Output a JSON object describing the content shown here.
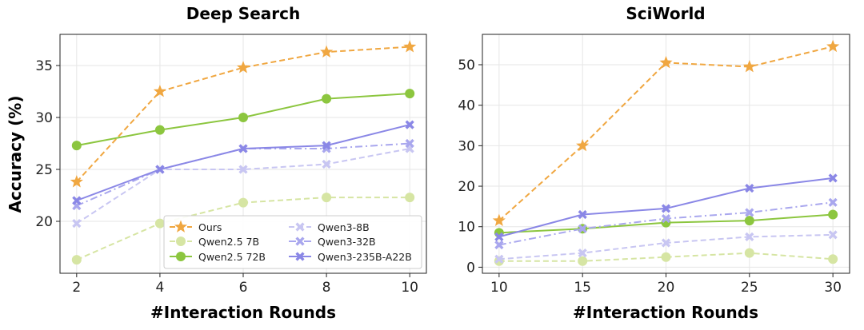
{
  "shared": {
    "ylabel": "Accuracy (%)",
    "xlabel": "#Interaction Rounds"
  },
  "legend": {
    "entries": [
      "Ours",
      "Qwen2.5 7B",
      "Qwen2.5 72B",
      "Qwen3-8B",
      "Qwen3-32B",
      "Qwen3-235B-A22B"
    ]
  },
  "chart_data": [
    {
      "type": "line",
      "title": "Deep Search",
      "xlabel": "#Interaction Rounds",
      "ylabel": "Accuracy (%)",
      "x": [
        2,
        4,
        6,
        8,
        10
      ],
      "xticks": [
        2,
        4,
        6,
        8,
        10
      ],
      "xlim": [
        1.6,
        10.4
      ],
      "yticks": [
        20,
        25,
        30,
        35
      ],
      "ylim": [
        15,
        38
      ],
      "legend_position": "lower-right",
      "series": [
        {
          "name": "Ours",
          "values": [
            23.8,
            32.5,
            34.8,
            36.3,
            36.8
          ],
          "color": "#F0A741",
          "marker": "star",
          "dash": "dashed",
          "alpha": 1
        },
        {
          "name": "Qwen2.5 7B",
          "values": [
            16.3,
            19.8,
            21.8,
            22.3,
            22.3
          ],
          "color": "#D6E5A3",
          "marker": "circle",
          "dash": "dashed",
          "alpha": 1
        },
        {
          "name": "Qwen2.5 72B",
          "values": [
            27.3,
            28.8,
            30.0,
            31.8,
            32.3
          ],
          "color": "#8CC63F",
          "marker": "circle",
          "dash": "solid",
          "alpha": 1
        },
        {
          "name": "Qwen3-8B",
          "values": [
            19.8,
            25.0,
            25.0,
            25.5,
            27.0
          ],
          "color": "#C8C6F2",
          "marker": "x",
          "dash": "dashed",
          "alpha": 1
        },
        {
          "name": "Qwen3-32B",
          "values": [
            21.5,
            25.0,
            27.0,
            27.0,
            27.5
          ],
          "color": "#A9A7EE",
          "marker": "x",
          "dash": "dashdot",
          "alpha": 1
        },
        {
          "name": "Qwen3-235B-A22B",
          "values": [
            22.0,
            25.0,
            27.0,
            27.3,
            29.3
          ],
          "color": "#8A87E6",
          "marker": "x",
          "dash": "solid",
          "alpha": 1
        }
      ]
    },
    {
      "type": "line",
      "title": "SciWorld",
      "xlabel": "#Interaction Rounds",
      "ylabel": "",
      "x": [
        10,
        15,
        20,
        25,
        30
      ],
      "xticks": [
        10,
        15,
        20,
        25,
        30
      ],
      "xlim": [
        9,
        31
      ],
      "yticks": [
        0,
        10,
        20,
        30,
        40,
        50
      ],
      "ylim": [
        -1.5,
        57.5
      ],
      "series": [
        {
          "name": "Ours",
          "values": [
            11.5,
            30.0,
            50.5,
            49.5,
            54.5
          ],
          "color": "#F0A741",
          "marker": "star",
          "dash": "dashed",
          "alpha": 1
        },
        {
          "name": "Qwen2.5 7B",
          "values": [
            1.5,
            1.5,
            2.5,
            3.5,
            2.0
          ],
          "color": "#D6E5A3",
          "marker": "circle",
          "dash": "dashed",
          "alpha": 1
        },
        {
          "name": "Qwen2.5 72B",
          "values": [
            8.5,
            9.5,
            11.0,
            11.5,
            13.0
          ],
          "color": "#8CC63F",
          "marker": "circle",
          "dash": "solid",
          "alpha": 1
        },
        {
          "name": "Qwen3-8B",
          "values": [
            2.0,
            3.5,
            6.0,
            7.5,
            8.0
          ],
          "color": "#C8C6F2",
          "marker": "x",
          "dash": "dashed",
          "alpha": 1
        },
        {
          "name": "Qwen3-32B",
          "values": [
            5.5,
            9.5,
            12.0,
            13.5,
            16.0
          ],
          "color": "#A9A7EE",
          "marker": "x",
          "dash": "dashdot",
          "alpha": 1
        },
        {
          "name": "Qwen3-235B-A22B",
          "values": [
            7.5,
            13.0,
            14.5,
            19.5,
            22.0
          ],
          "color": "#8A87E6",
          "marker": "x",
          "dash": "solid",
          "alpha": 1
        }
      ]
    }
  ]
}
